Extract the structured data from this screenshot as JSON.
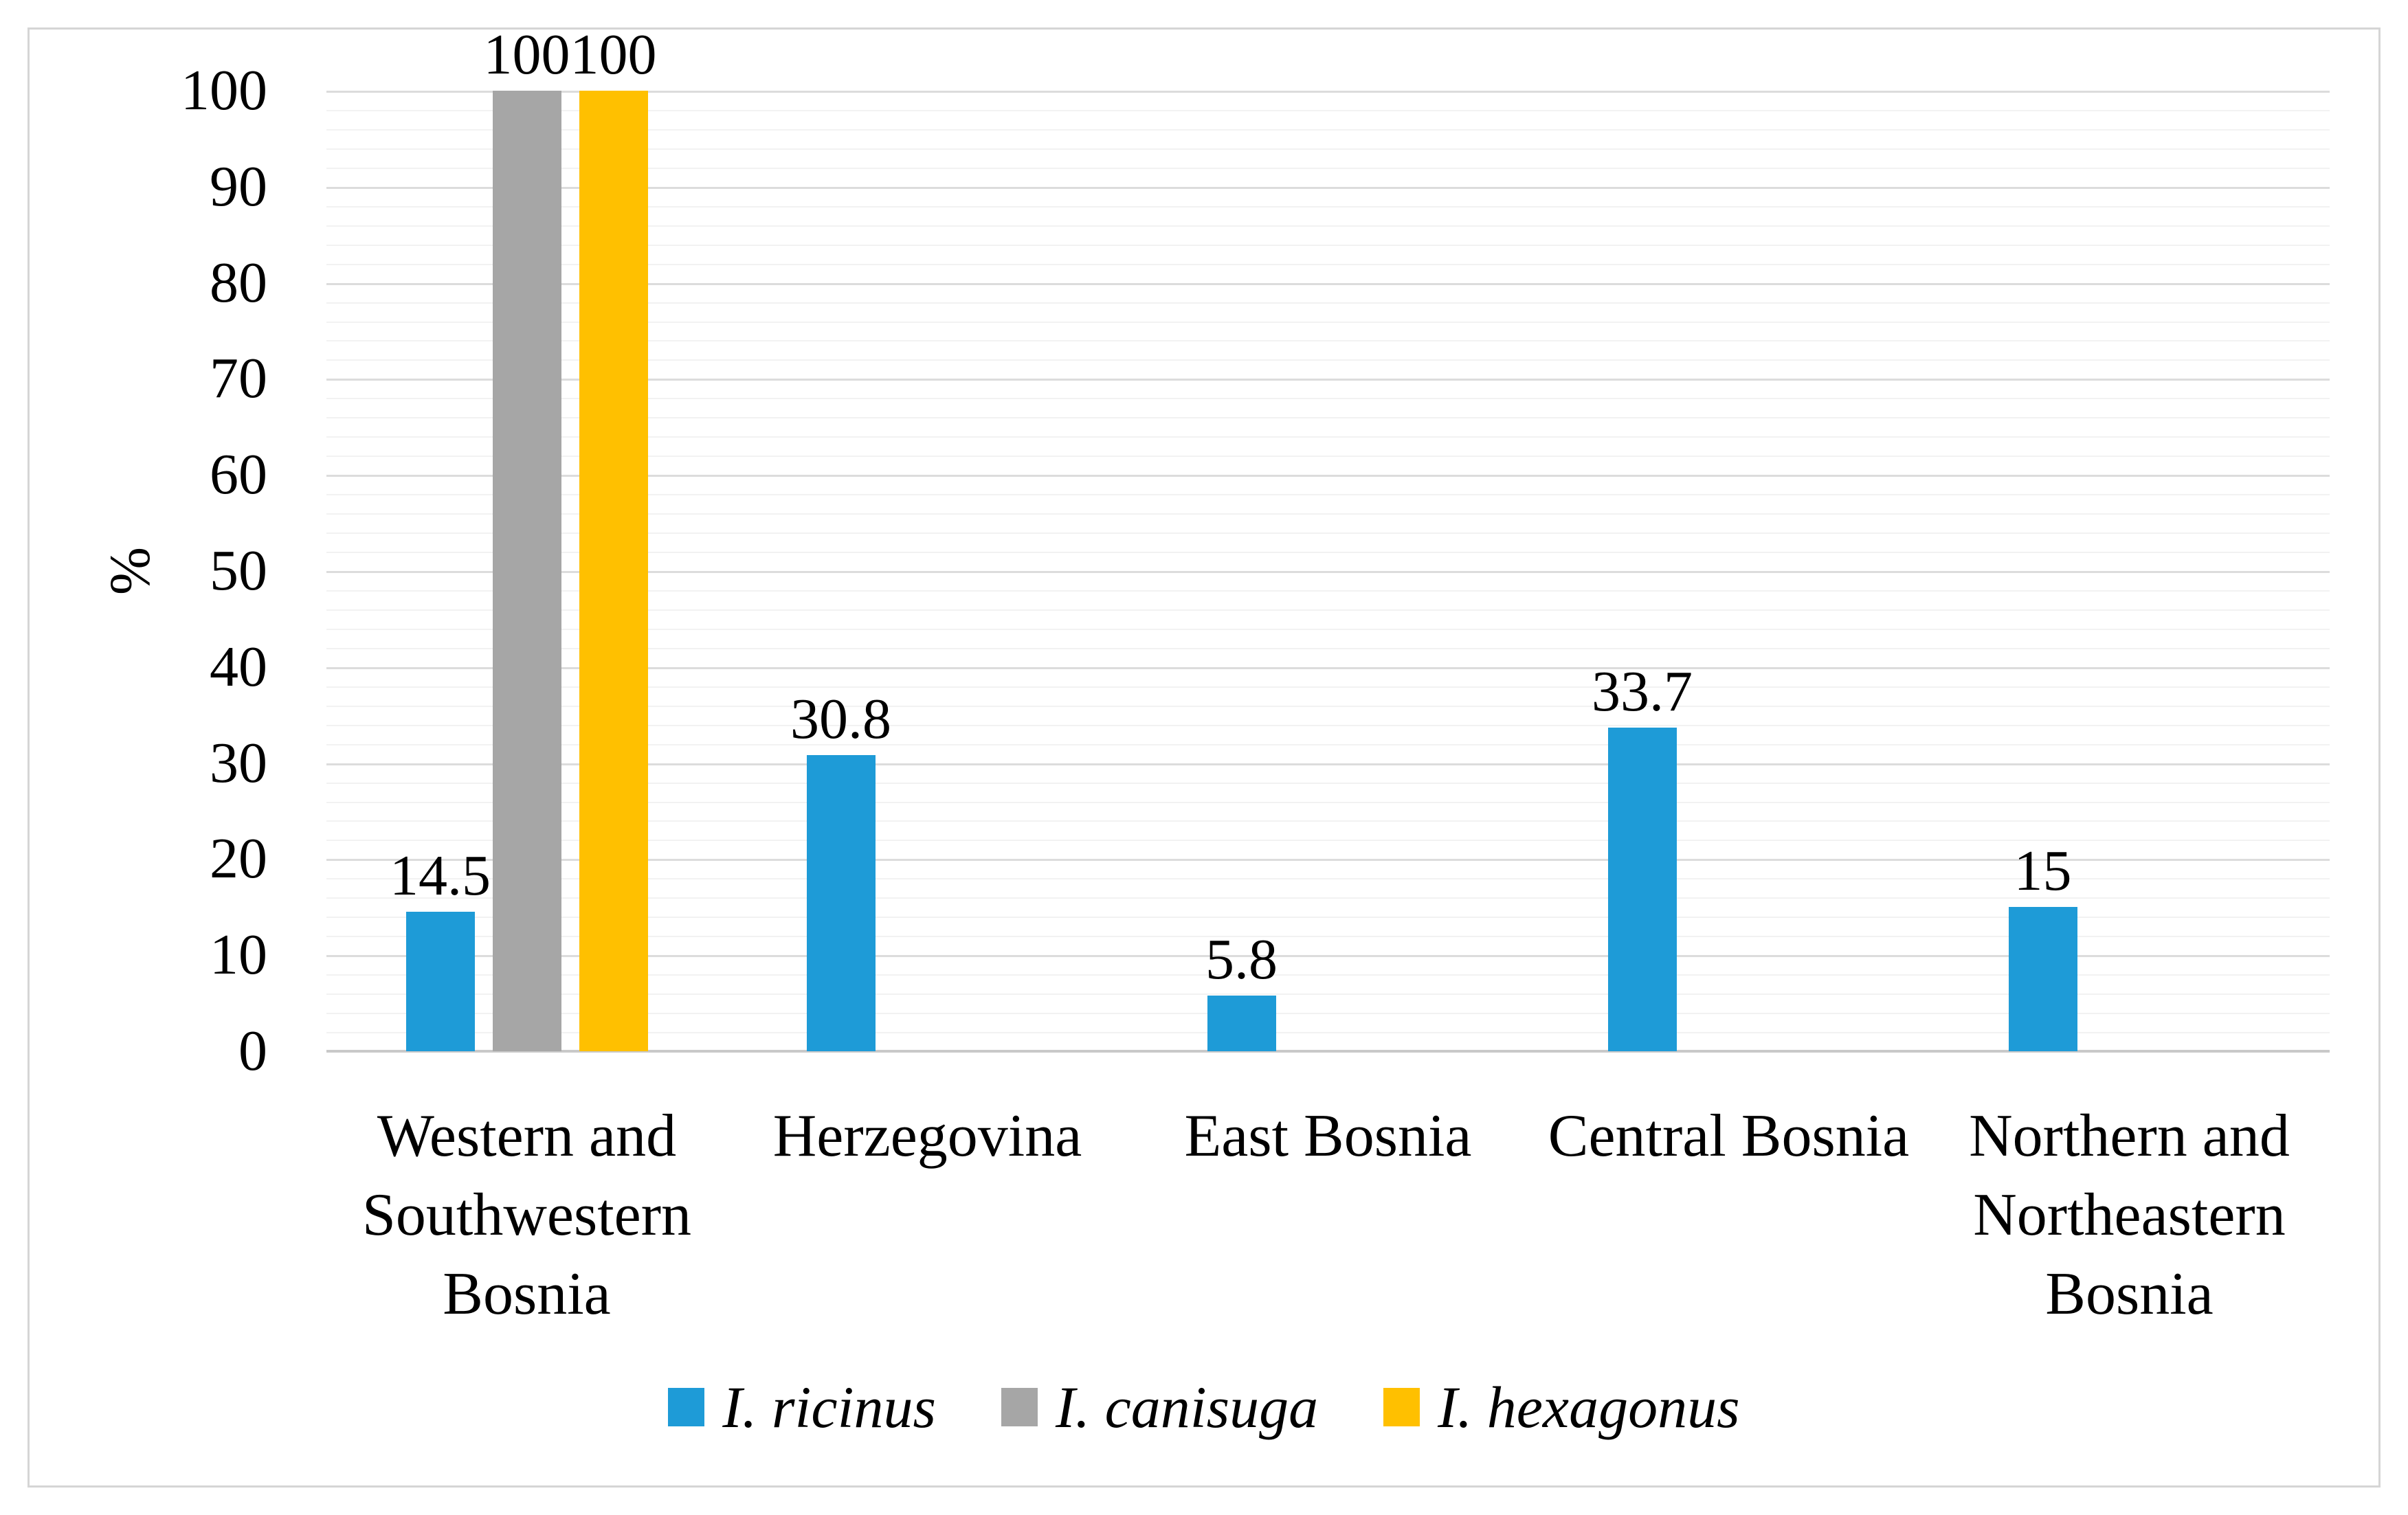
{
  "chart_data": {
    "type": "bar",
    "title": "",
    "xlabel": "",
    "ylabel": "%",
    "ylim": [
      0,
      100
    ],
    "y_ticks": [
      0,
      10,
      20,
      30,
      40,
      50,
      60,
      70,
      80,
      90,
      100
    ],
    "y_major_step": 10,
    "y_minor_step": 2,
    "grid": "horizontal major+minor",
    "legend_position": "bottom",
    "data_labels": true,
    "categories": [
      "Western and Southwestern Bosnia",
      "Herzegovina",
      "East Bosnia",
      "Central Bosnia",
      "Northern and Northeastern Bosnia"
    ],
    "series": [
      {
        "name": "I. ricinus",
        "color": "#1E9BD7",
        "values": [
          14.5,
          30.8,
          5.8,
          33.7,
          15
        ],
        "labels": [
          "14.5",
          "30.8",
          "5.8",
          "33.7",
          "15"
        ]
      },
      {
        "name": "I. canisuga",
        "color": "#A6A6A6",
        "values": [
          100,
          null,
          null,
          null,
          null
        ],
        "labels": [
          "100",
          "",
          "",
          "",
          ""
        ]
      },
      {
        "name": "I. hexagonus",
        "color": "#FFC000",
        "values": [
          100,
          null,
          null,
          null,
          null
        ],
        "labels": [
          "100",
          "",
          "",
          "",
          ""
        ]
      }
    ]
  }
}
